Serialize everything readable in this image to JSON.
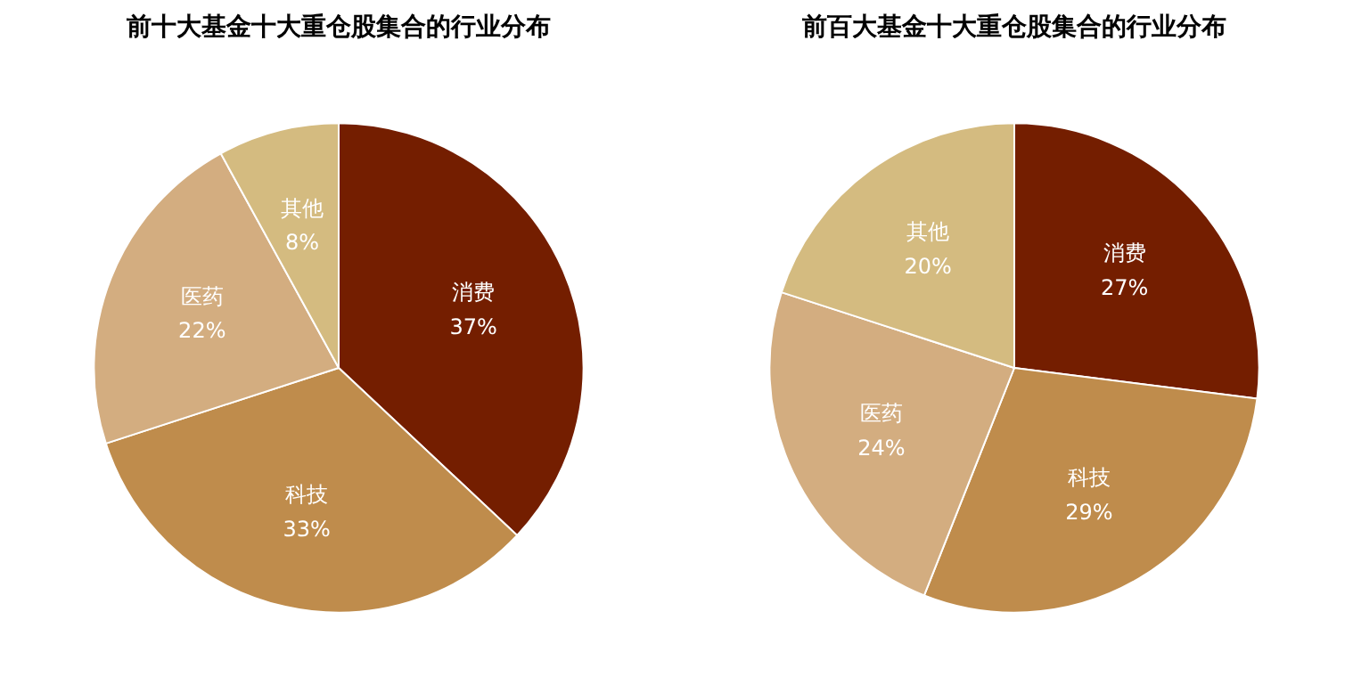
{
  "chart_data": [
    {
      "type": "pie",
      "title": "前十大基金十大重仓股集合的行业分布",
      "categories": [
        "消费",
        "科技",
        "医药",
        "其他"
      ],
      "values": [
        37,
        33,
        22,
        8
      ],
      "value_labels": [
        "37%",
        "33%",
        "22%",
        "8%"
      ],
      "colors": [
        "#741e00",
        "#bf8c4c",
        "#d3ad80",
        "#d4bb80"
      ]
    },
    {
      "type": "pie",
      "title": "前百大基金十大重仓股集合的行业分布",
      "categories": [
        "消费",
        "科技",
        "医药",
        "其他"
      ],
      "values": [
        27,
        29,
        24,
        20
      ],
      "value_labels": [
        "27%",
        "29%",
        "24%",
        "20%"
      ],
      "colors": [
        "#741e00",
        "#bf8c4c",
        "#d3ad80",
        "#d4bb80"
      ]
    }
  ]
}
